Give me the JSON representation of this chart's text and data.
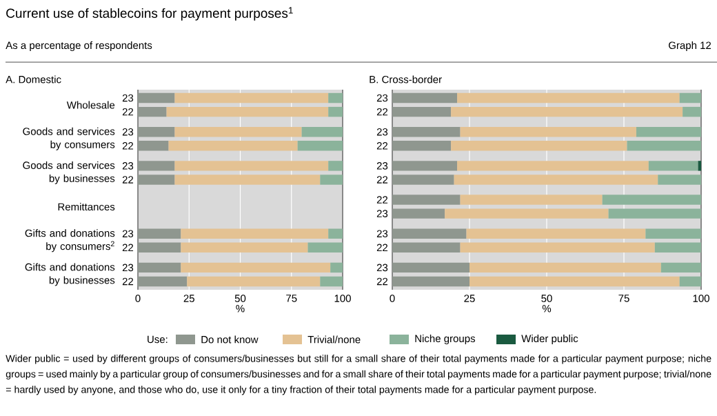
{
  "chart_data": [
    {
      "type": "other",
      "title": "Current use of stablecoins for payment purposes$^{1}$",
      "subtitle": "As a percentage of respondents",
      "annotations": [
        "Graph 12",
        "Wider public = used by different groups of consumers/businesses but still for a small share of their total payments made for a particular payment purpose; niche groups = used mainly by a particular group of consumers/businesses and for a small share of their total payments made for a particular payment purpose; trivial/none = hardly used by anyone, and those who do, use it only for a tiny fraction of their total payments made for a particular payment purpose."
      ]
    },
    {
      "type": "bar",
      "title": "A. Domestic",
      "orientation": "horizontal",
      "stacked": true,
      "grid": "x",
      "xlabel": "%",
      "categories": [
        "23",
        "22",
        "23",
        "22",
        "23",
        "22",
        null,
        null,
        "23",
        "22",
        "23",
        "22"
      ],
      "annotations": [
        "Wholesale",
        "Goods and services by consumers",
        "Goods and services by businesses",
        "Remittances",
        "Gifts and donations by consumers$^{2}$",
        "Gifts and donations by businesses"
      ],
      "xlim": [
        0,
        100
      ],
      "xticks": [
        0,
        25,
        50,
        75,
        100
      ],
      "series": [
        {
          "color": "#8f978f",
          "values": [
            18,
            14,
            18,
            15,
            18,
            18,
            null,
            null,
            21,
            21,
            21,
            24
          ]
        },
        {
          "color": "#e4c293",
          "values": [
            75,
            79,
            62,
            63,
            75,
            71,
            null,
            null,
            72,
            62,
            73,
            65
          ]
        },
        {
          "color": "#8bb39b",
          "values": [
            7,
            7,
            20,
            22,
            7,
            11,
            null,
            null,
            7,
            17,
            6,
            11
          ]
        }
      ]
    },
    {
      "type": "bar",
      "title": "B. Cross-border",
      "orientation": "horizontal",
      "stacked": true,
      "grid": "x",
      "xlabel": "%",
      "categories": [
        "23",
        "22",
        "23",
        "22",
        "23",
        "22",
        "22",
        "23",
        "23",
        "22",
        "23",
        "22"
      ],
      "xlim": [
        0,
        100
      ],
      "xticks": [
        0,
        25,
        50,
        75,
        100
      ],
      "legend": "bottom",
      "legend_title": "Use:",
      "series": [
        {
          "name": "Do not know",
          "color": "#8f978f",
          "values": [
            21,
            19,
            22,
            19,
            21,
            20,
            22,
            17,
            24,
            22,
            25,
            25
          ]
        },
        {
          "name": "Trivial/none",
          "color": "#e4c293",
          "values": [
            72,
            75,
            57,
            57,
            62,
            66,
            46,
            53,
            58,
            63,
            62,
            68
          ]
        },
        {
          "name": "Niche groups",
          "color": "#8bb39b",
          "values": [
            7,
            6,
            21,
            24,
            16,
            14,
            32,
            30,
            18,
            15,
            13,
            7
          ]
        },
        {
          "name": "Wider public",
          "color": "#1a5a40",
          "values": [
            null,
            null,
            null,
            null,
            1,
            null,
            null,
            null,
            null,
            null,
            null,
            null
          ]
        }
      ]
    }
  ]
}
